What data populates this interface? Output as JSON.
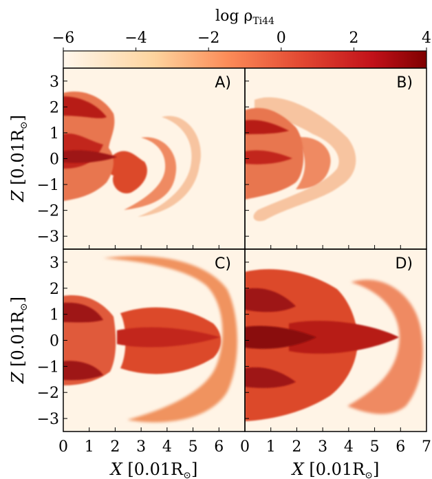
{
  "chart_data": {
    "type": "heatmap",
    "colorbar": {
      "label": "log ρ",
      "label_sub": "Ti44",
      "ticks": [
        "−6",
        "−4",
        "−2",
        "0",
        "2",
        "4"
      ],
      "range": [
        -6,
        4
      ],
      "colormap": "OrRd"
    },
    "x_axis": {
      "label_var": "X",
      "label_unit": "[0.01R",
      "label_sub": "⊙",
      "label_close": "]",
      "range": [
        0,
        7
      ],
      "ticks": [
        "0",
        "1",
        "2",
        "3",
        "4",
        "5",
        "6",
        "7"
      ]
    },
    "y_axis": {
      "label_var": "Z",
      "label_unit": "[0.01R",
      "label_sub": "⊙",
      "label_close": "]",
      "range": [
        -3.5,
        3.5
      ],
      "ticks": [
        "3",
        "2",
        "1",
        "0",
        "−1",
        "−2",
        "−3"
      ]
    },
    "panels": [
      {
        "id": "A",
        "label": "A)"
      },
      {
        "id": "B",
        "label": "B)"
      },
      {
        "id": "C",
        "label": "C)"
      },
      {
        "id": "D",
        "label": "D)"
      }
    ],
    "colors": {
      "background": "#fff4e6",
      "light": "#f7c4a0",
      "mid": "#ef8a62",
      "strong": "#dc4a2c",
      "dark": "#b71f18",
      "darkest": "#8a0b0b"
    }
  }
}
